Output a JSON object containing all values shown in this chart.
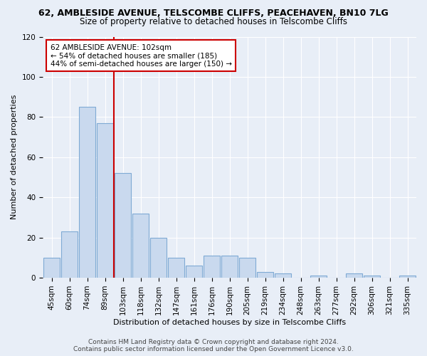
{
  "title": "62, AMBLESIDE AVENUE, TELSCOMBE CLIFFS, PEACEHAVEN, BN10 7LG",
  "subtitle": "Size of property relative to detached houses in Telscombe Cliffs",
  "xlabel": "Distribution of detached houses by size in Telscombe Cliffs",
  "ylabel": "Number of detached properties",
  "categories": [
    "45sqm",
    "60sqm",
    "74sqm",
    "89sqm",
    "103sqm",
    "118sqm",
    "132sqm",
    "147sqm",
    "161sqm",
    "176sqm",
    "190sqm",
    "205sqm",
    "219sqm",
    "234sqm",
    "248sqm",
    "263sqm",
    "277sqm",
    "292sqm",
    "306sqm",
    "321sqm",
    "335sqm"
  ],
  "values": [
    10,
    23,
    85,
    77,
    52,
    32,
    20,
    10,
    6,
    11,
    11,
    10,
    3,
    2,
    0,
    1,
    0,
    2,
    1,
    0,
    1
  ],
  "bar_color": "#c9d9ee",
  "bar_edge_color": "#7faad4",
  "vline_x_index": 4,
  "vline_color": "#cc0000",
  "annotation_text": "62 AMBLESIDE AVENUE: 102sqm\n← 54% of detached houses are smaller (185)\n44% of semi-detached houses are larger (150) →",
  "annotation_box_color": "#ffffff",
  "annotation_box_edge_color": "#cc0000",
  "background_color": "#e8eef7",
  "ylim": [
    0,
    120
  ],
  "yticks": [
    0,
    20,
    40,
    60,
    80,
    100,
    120
  ],
  "title_fontsize": 9,
  "subtitle_fontsize": 8.5,
  "ylabel_fontsize": 8,
  "xlabel_fontsize": 8,
  "tick_fontsize": 7.5,
  "footer_line1": "Contains HM Land Registry data © Crown copyright and database right 2024.",
  "footer_line2": "Contains public sector information licensed under the Open Government Licence v3.0.",
  "footer_fontsize": 6.5
}
